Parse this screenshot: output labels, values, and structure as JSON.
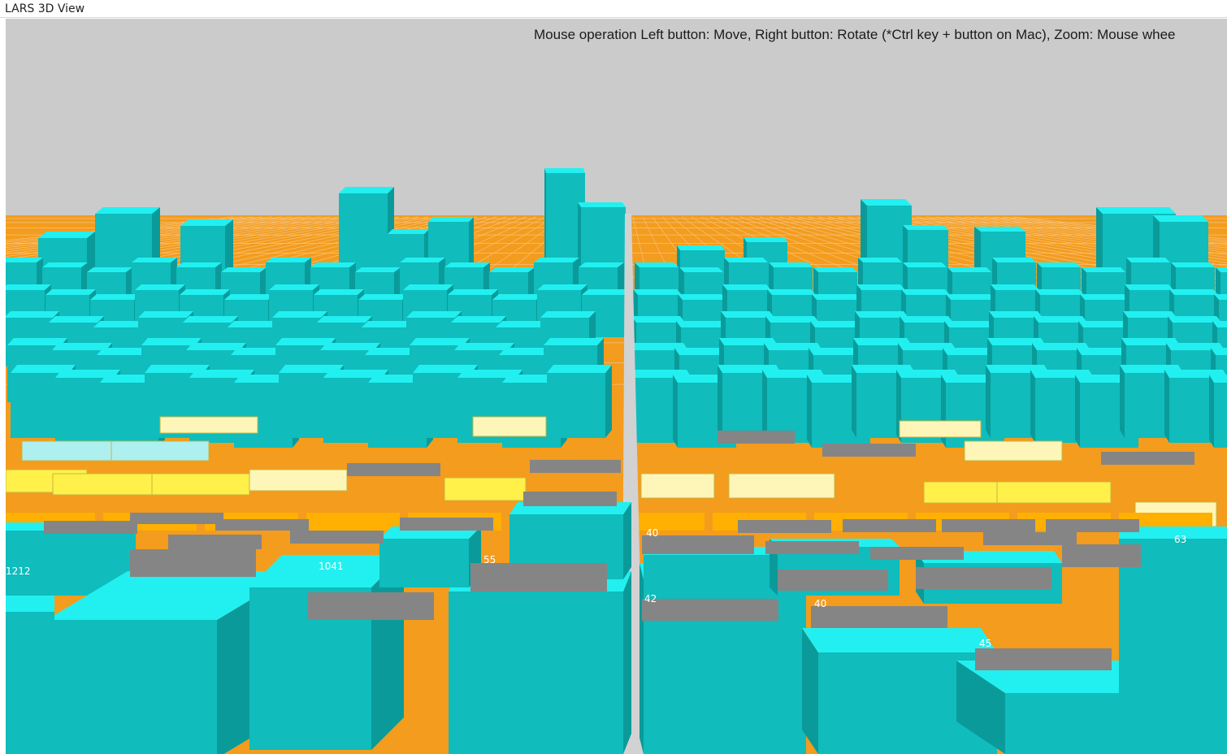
{
  "window": {
    "title": "LARS 3D View"
  },
  "viewport": {
    "hint": "Mouse operation Left button: Move, Right button: Rotate (*Ctrl key + button on Mac), Zoom: Mouse whee",
    "colors": {
      "sky": "#cbcbcb",
      "ground_grid": "#f39c1e",
      "block_top": "#22f0f0",
      "block_front": "#10bcbc",
      "block_side": "#0b9a9a",
      "tile_yellow": "#fff04a",
      "tile_pale_yellow": "#fdf6b8",
      "tile_pale_cyan": "#aef0f0",
      "tile_orange": "#ffb000",
      "redaction": "#858585",
      "aisle": "#d2d2d2"
    },
    "visible_labels": [
      "40",
      "42",
      "40",
      "45",
      "55",
      "1041",
      "1212",
      "63"
    ]
  }
}
